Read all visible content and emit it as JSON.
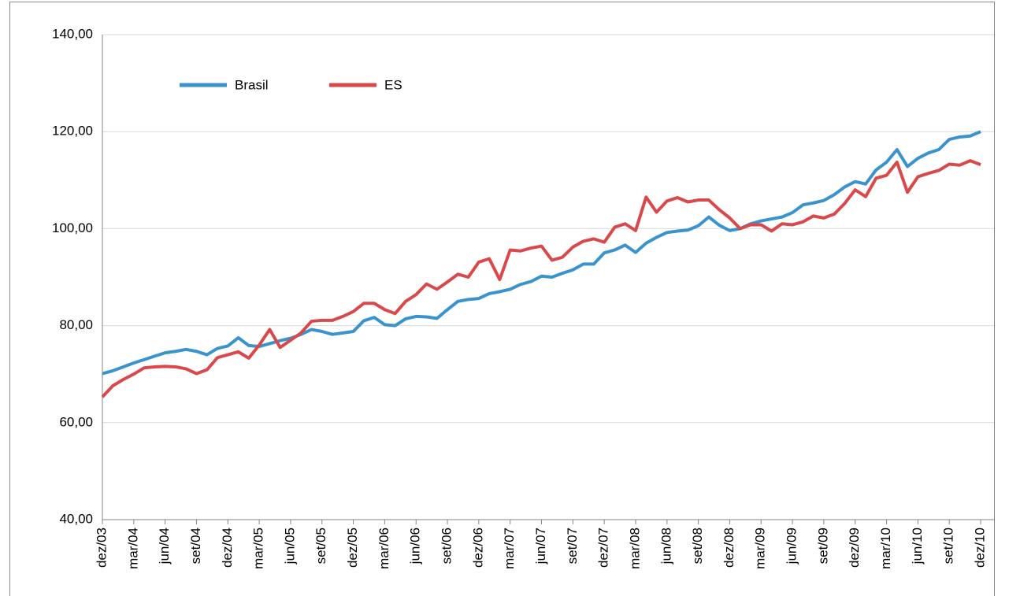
{
  "chart_data": {
    "type": "line",
    "categories": [
      "dez/03",
      null,
      null,
      "mar/04",
      null,
      null,
      "jun/04",
      null,
      null,
      "set/04",
      null,
      null,
      "dez/04",
      null,
      null,
      "mar/05",
      null,
      null,
      "jun/05",
      null,
      null,
      "set/05",
      null,
      null,
      "dez/05",
      null,
      null,
      "mar/06",
      null,
      null,
      "jun/06",
      null,
      null,
      "set/06",
      null,
      null,
      "dez/06",
      null,
      null,
      "mar/07",
      null,
      null,
      "jun/07",
      null,
      null,
      "set/07",
      null,
      null,
      "dez/07",
      null,
      null,
      "mar/08",
      null,
      null,
      "jun/08",
      null,
      null,
      "set/08",
      null,
      null,
      "dez/08",
      null,
      null,
      "mar/09",
      null,
      null,
      "jun/09",
      null,
      null,
      "set/09",
      null,
      null,
      "dez/09",
      null,
      null,
      "mar/10",
      null,
      null,
      "jun/10",
      null,
      null,
      "set/10",
      null,
      null,
      "dez/10"
    ],
    "series": [
      {
        "name": "Brasil",
        "color": "#3a93cd",
        "values": [
          70.1,
          70.7,
          71.5,
          72.3,
          73.0,
          73.7,
          74.4,
          74.7,
          75.1,
          74.7,
          74.0,
          75.3,
          75.8,
          77.5,
          75.9,
          75.7,
          76.3,
          76.9,
          77.4,
          78.2,
          79.2,
          78.8,
          78.2,
          78.5,
          78.8,
          81.0,
          81.7,
          80.2,
          80.0,
          81.4,
          81.9,
          81.8,
          81.5,
          83.3,
          85.0,
          85.4,
          85.6,
          86.6,
          87.0,
          87.5,
          88.5,
          89.1,
          90.2,
          90.0,
          90.8,
          91.5,
          92.7,
          92.7,
          95.0,
          95.6,
          96.6,
          95.1,
          97.0,
          98.2,
          99.2,
          99.5,
          99.7,
          100.6,
          102.4,
          100.7,
          99.6,
          100.0,
          101.0,
          101.6,
          102.0,
          102.4,
          103.3,
          104.9,
          105.3,
          105.8,
          107.0,
          108.6,
          109.7,
          109.2,
          112.1,
          113.7,
          116.3,
          112.8,
          114.5,
          115.6,
          116.3,
          118.4,
          118.9,
          119.1,
          120.0
        ]
      },
      {
        "name": "ES",
        "color": "#d9494b",
        "values": [
          65.3,
          67.6,
          68.9,
          70.0,
          71.3,
          71.5,
          71.6,
          71.5,
          71.1,
          70.1,
          70.9,
          73.4,
          74.0,
          74.6,
          73.3,
          76.0,
          79.2,
          75.5,
          77.0,
          78.5,
          80.9,
          81.1,
          81.1,
          81.9,
          82.9,
          84.6,
          84.6,
          83.3,
          82.5,
          85.0,
          86.4,
          88.6,
          87.5,
          89.0,
          90.6,
          90.0,
          93.1,
          93.8,
          89.5,
          95.6,
          95.4,
          96.0,
          96.4,
          93.5,
          94.1,
          96.2,
          97.4,
          97.9,
          97.2,
          100.3,
          101.0,
          99.6,
          106.5,
          103.4,
          105.7,
          106.4,
          105.5,
          105.9,
          105.9,
          103.9,
          102.2,
          100.0,
          100.8,
          100.8,
          99.5,
          101.0,
          100.8,
          101.4,
          102.6,
          102.2,
          103.0,
          105.2,
          108.0,
          106.6,
          110.4,
          111.0,
          113.7,
          107.5,
          110.7,
          111.4,
          112.0,
          113.3,
          113.1,
          114.0,
          113.2
        ]
      }
    ],
    "ylim": [
      40,
      140
    ],
    "yticks": [
      {
        "value": 40,
        "label": "40,00"
      },
      {
        "value": 60,
        "label": "60,00"
      },
      {
        "value": 80,
        "label": "80,00"
      },
      {
        "value": 100,
        "label": "100,00"
      },
      {
        "value": 120,
        "label": "120,00"
      },
      {
        "value": 140,
        "label": "140,00"
      }
    ],
    "grid": true,
    "legend": "upper left"
  }
}
